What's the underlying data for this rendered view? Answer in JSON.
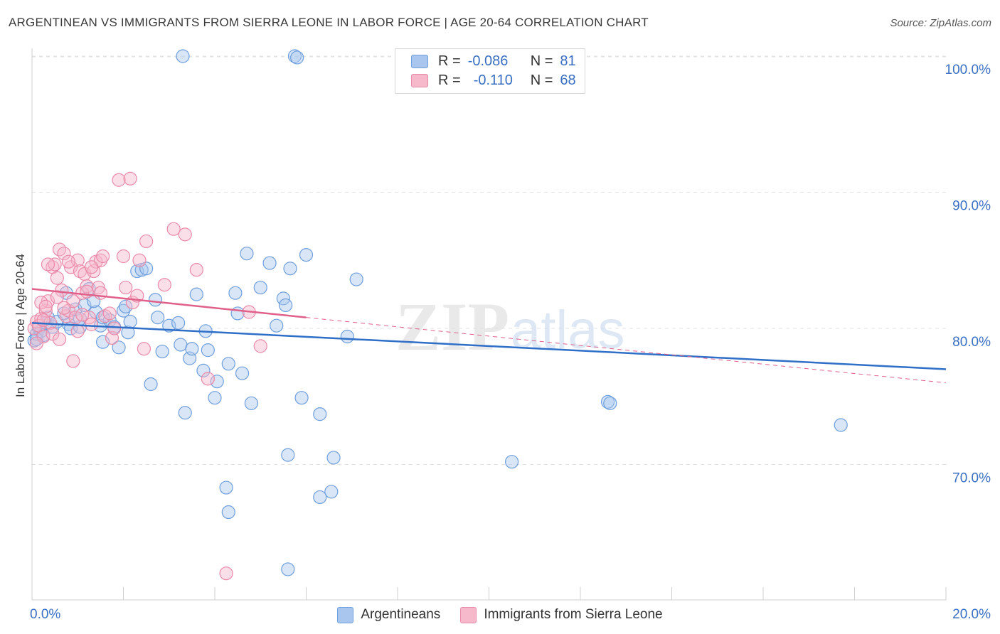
{
  "title": "ARGENTINEAN VS IMMIGRANTS FROM SIERRA LEONE IN LABOR FORCE | AGE 20-64 CORRELATION CHART",
  "source": "Source: ZipAtlas.com",
  "watermark": {
    "part1": "ZIP",
    "part2": "atlas"
  },
  "legend": {
    "rows": [
      {
        "r_label": "R =",
        "r_value": "-0.086",
        "n_label": "N =",
        "n_value": "81"
      },
      {
        "r_label": "R =",
        "r_value": "-0.110",
        "n_label": "N =",
        "n_value": "68"
      }
    ]
  },
  "bottom_legend": {
    "series1": "Argentineans",
    "series2": "Immigrants from Sierra Leone"
  },
  "colors": {
    "blue_fill": "#a9c7ee",
    "blue_stroke": "#6f9fdc",
    "blue_line": "#2f6fc8",
    "pink_fill": "#f6b8cb",
    "pink_stroke": "#e98aa8",
    "pink_line": "#e0608a",
    "axis_text": "#3a6fc4",
    "grid": "#e3e3e3"
  },
  "chart_data": {
    "type": "scatter",
    "title": "ARGENTINEAN VS IMMIGRANTS FROM SIERRA LEONE IN LABOR FORCE | AGE 20-64 CORRELATION CHART",
    "xlabel": "",
    "ylabel": "In Labor Force | Age 20-64",
    "xlim": [
      0,
      20
    ],
    "ylim": [
      60,
      100
    ],
    "x_tick_labels": [
      {
        "value": 0,
        "label": "0.0%"
      },
      {
        "value": 20,
        "label": "20.0%"
      }
    ],
    "y_tick_labels": [
      {
        "value": 70,
        "label": "70.0%"
      },
      {
        "value": 80,
        "label": "80.0%"
      },
      {
        "value": 90,
        "label": "90.0%"
      },
      {
        "value": 100,
        "label": "100.0%"
      }
    ],
    "series": [
      {
        "name": "Argentineans",
        "r": -0.086,
        "n": 81,
        "trend": {
          "x": [
            0,
            20
          ],
          "y": [
            80.4,
            77.0
          ]
        },
        "points": [
          [
            0.05,
            79.1
          ],
          [
            0.1,
            79.6
          ],
          [
            0.15,
            80.0
          ],
          [
            0.2,
            79.8
          ],
          [
            0.3,
            80.4
          ],
          [
            0.35,
            80.8
          ],
          [
            0.45,
            80.1
          ],
          [
            0.55,
            80.5
          ],
          [
            0.7,
            81.1
          ],
          [
            0.75,
            82.6
          ],
          [
            0.8,
            80.3
          ],
          [
            0.85,
            80.0
          ],
          [
            0.95,
            81.4
          ],
          [
            1.05,
            80.1
          ],
          [
            1.15,
            81.7
          ],
          [
            1.25,
            82.9
          ],
          [
            1.4,
            81.2
          ],
          [
            1.5,
            80.2
          ],
          [
            1.55,
            79.0
          ],
          [
            1.7,
            80.6
          ],
          [
            1.8,
            80.1
          ],
          [
            1.9,
            78.6
          ],
          [
            2.0,
            81.3
          ],
          [
            2.05,
            81.6
          ],
          [
            2.1,
            79.7
          ],
          [
            2.3,
            84.2
          ],
          [
            2.4,
            84.3
          ],
          [
            2.5,
            84.4
          ],
          [
            2.7,
            82.1
          ],
          [
            2.6,
            75.9
          ],
          [
            2.75,
            80.8
          ],
          [
            2.85,
            78.3
          ],
          [
            3.0,
            80.2
          ],
          [
            3.2,
            80.4
          ],
          [
            3.25,
            78.8
          ],
          [
            3.35,
            73.8
          ],
          [
            3.45,
            77.8
          ],
          [
            3.5,
            78.5
          ],
          [
            3.6,
            82.5
          ],
          [
            3.75,
            76.9
          ],
          [
            3.8,
            79.8
          ],
          [
            3.85,
            78.4
          ],
          [
            4.0,
            74.9
          ],
          [
            4.05,
            76.1
          ],
          [
            4.3,
            77.4
          ],
          [
            4.45,
            82.6
          ],
          [
            4.5,
            81.1
          ],
          [
            4.6,
            76.7
          ],
          [
            4.7,
            85.5
          ],
          [
            4.8,
            74.5
          ],
          [
            5.0,
            83.0
          ],
          [
            5.2,
            84.8
          ],
          [
            5.35,
            80.2
          ],
          [
            5.5,
            82.2
          ],
          [
            5.55,
            81.7
          ],
          [
            5.65,
            84.4
          ],
          [
            6.0,
            85.4
          ],
          [
            5.9,
            74.9
          ],
          [
            6.3,
            73.7
          ],
          [
            5.6,
            70.7
          ],
          [
            6.6,
            70.5
          ],
          [
            6.9,
            79.4
          ],
          [
            7.1,
            83.6
          ],
          [
            6.55,
            68.0
          ],
          [
            6.3,
            67.6
          ],
          [
            4.3,
            66.5
          ],
          [
            4.25,
            68.3
          ],
          [
            5.6,
            62.3
          ],
          [
            10.5,
            70.2
          ],
          [
            12.6,
            74.6
          ],
          [
            12.65,
            74.5
          ],
          [
            17.7,
            72.9
          ],
          [
            5.75,
            100.0
          ],
          [
            3.3,
            100.0
          ],
          [
            5.8,
            99.9
          ],
          [
            0.1,
            79.2
          ],
          [
            0.25,
            79.5
          ],
          [
            1.05,
            80.7
          ],
          [
            1.55,
            80.8
          ],
          [
            1.35,
            82.0
          ],
          [
            2.15,
            80.5
          ]
        ]
      },
      {
        "name": "Immigrants from Sierra Leone",
        "r": -0.11,
        "n": 68,
        "trend": {
          "x": [
            0,
            6.0
          ],
          "y": [
            82.9,
            80.8
          ]
        },
        "trend_dashed": {
          "x": [
            6.0,
            20
          ],
          "y": [
            80.8,
            76.0
          ]
        },
        "points": [
          [
            0.05,
            80.0
          ],
          [
            0.1,
            80.5
          ],
          [
            0.15,
            80.2
          ],
          [
            0.2,
            80.7
          ],
          [
            0.25,
            79.4
          ],
          [
            0.3,
            81.3
          ],
          [
            0.35,
            82.0
          ],
          [
            0.4,
            80.4
          ],
          [
            0.45,
            84.5
          ],
          [
            0.5,
            84.7
          ],
          [
            0.55,
            83.7
          ],
          [
            0.6,
            85.8
          ],
          [
            0.65,
            82.8
          ],
          [
            0.7,
            85.5
          ],
          [
            0.75,
            80.9
          ],
          [
            0.8,
            81.3
          ],
          [
            0.85,
            84.5
          ],
          [
            0.9,
            82.0
          ],
          [
            0.95,
            80.8
          ],
          [
            1.0,
            85.0
          ],
          [
            1.05,
            84.2
          ],
          [
            1.1,
            82.6
          ],
          [
            1.15,
            84.0
          ],
          [
            1.2,
            83.1
          ],
          [
            1.25,
            80.8
          ],
          [
            1.3,
            80.3
          ],
          [
            1.35,
            84.2
          ],
          [
            1.4,
            84.9
          ],
          [
            1.45,
            83.0
          ],
          [
            1.5,
            85.0
          ],
          [
            1.55,
            85.3
          ],
          [
            1.6,
            80.9
          ],
          [
            1.7,
            81.1
          ],
          [
            1.75,
            79.3
          ],
          [
            1.8,
            80.0
          ],
          [
            1.9,
            90.9
          ],
          [
            2.0,
            85.3
          ],
          [
            2.05,
            83.0
          ],
          [
            2.15,
            91.0
          ],
          [
            2.2,
            81.9
          ],
          [
            2.3,
            82.4
          ],
          [
            2.35,
            85.0
          ],
          [
            2.45,
            78.5
          ],
          [
            2.5,
            86.4
          ],
          [
            2.9,
            83.2
          ],
          [
            3.1,
            87.3
          ],
          [
            3.35,
            86.9
          ],
          [
            3.6,
            84.3
          ],
          [
            3.85,
            76.3
          ],
          [
            4.25,
            62.0
          ],
          [
            4.75,
            81.2
          ],
          [
            5.0,
            78.7
          ],
          [
            0.1,
            78.9
          ],
          [
            0.2,
            81.9
          ],
          [
            0.3,
            81.6
          ],
          [
            0.45,
            79.6
          ],
          [
            0.6,
            79.2
          ],
          [
            0.7,
            81.5
          ],
          [
            0.8,
            84.9
          ],
          [
            0.9,
            77.6
          ],
          [
            1.0,
            79.8
          ],
          [
            1.1,
            81.0
          ],
          [
            1.2,
            82.7
          ],
          [
            1.3,
            84.5
          ],
          [
            1.5,
            82.6
          ],
          [
            0.35,
            84.7
          ],
          [
            0.55,
            82.3
          ],
          [
            0.25,
            80.6
          ]
        ]
      }
    ]
  }
}
